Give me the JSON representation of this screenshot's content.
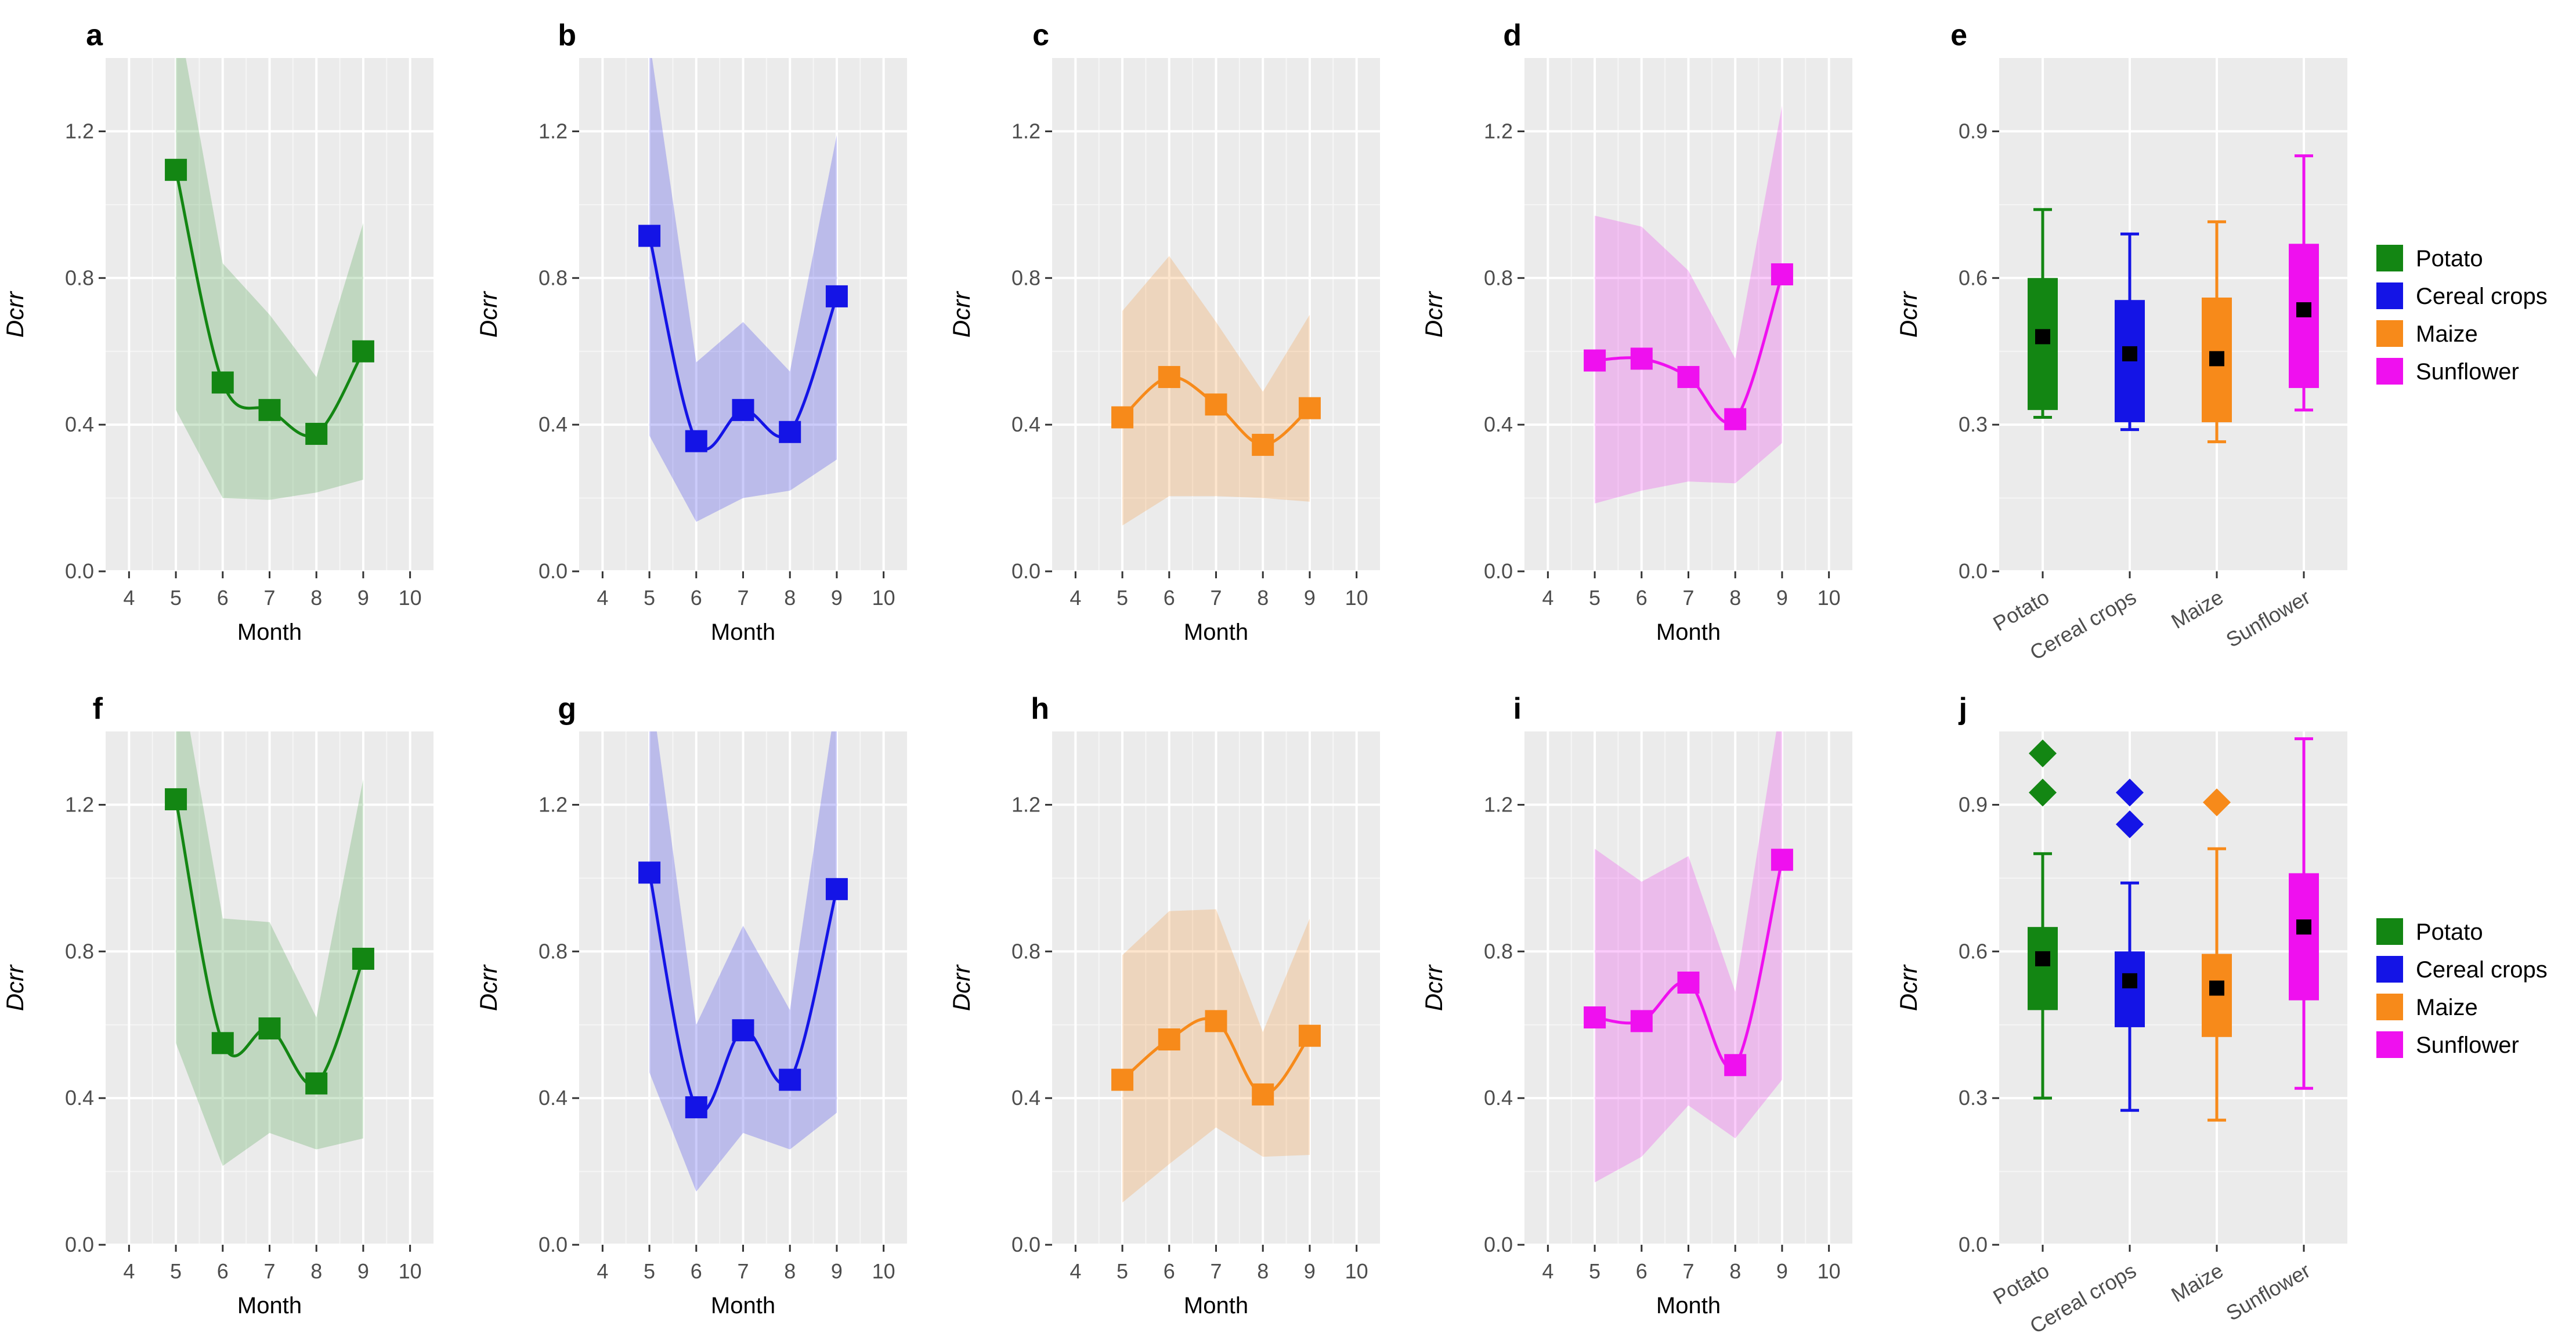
{
  "colors": {
    "potato": "#138613",
    "cereal": "#1414e6",
    "maize": "#f78a1a",
    "sunflower": "#ef10ef",
    "panel_bg": "#ebebeb"
  },
  "chart_data": [
    {
      "id": "a",
      "type": "line",
      "series_key": "potato",
      "title": "a",
      "xlabel": "Month",
      "ylabel": "Dcrr",
      "x": [
        5,
        6,
        7,
        8,
        9
      ],
      "values": [
        1.095,
        0.515,
        0.44,
        0.375,
        0.6
      ],
      "band_low": [
        0.44,
        0.2,
        0.195,
        0.215,
        0.25
      ],
      "band_high": [
        1.55,
        0.84,
        0.7,
        0.53,
        0.95
      ],
      "xlim": [
        3.5,
        10.5
      ],
      "xticks": [
        "4",
        "5",
        "6",
        "7",
        "8",
        "9",
        "10"
      ],
      "ylim": [
        0,
        1.4
      ],
      "yticks": [
        "0.0",
        "0.4",
        "0.8",
        "1.2"
      ]
    },
    {
      "id": "b",
      "type": "line",
      "series_key": "cereal",
      "title": "b",
      "xlabel": "Month",
      "ylabel": "Dcrr",
      "x": [
        5,
        6,
        7,
        8,
        9
      ],
      "values": [
        0.915,
        0.355,
        0.44,
        0.38,
        0.75
      ],
      "band_low": [
        0.37,
        0.135,
        0.2,
        0.22,
        0.305
      ],
      "band_high": [
        1.45,
        0.57,
        0.68,
        0.545,
        1.19
      ],
      "xlim": [
        3.5,
        10.5
      ],
      "xticks": [
        "4",
        "5",
        "6",
        "7",
        "8",
        "9",
        "10"
      ],
      "ylim": [
        0,
        1.4
      ],
      "yticks": [
        "0.0",
        "0.4",
        "0.8",
        "1.2"
      ]
    },
    {
      "id": "c",
      "type": "line",
      "series_key": "maize",
      "title": "c",
      "xlabel": "Month",
      "ylabel": "Dcrr",
      "x": [
        5,
        6,
        7,
        8,
        9
      ],
      "values": [
        0.42,
        0.53,
        0.455,
        0.345,
        0.445
      ],
      "band_low": [
        0.125,
        0.205,
        0.205,
        0.2,
        0.19
      ],
      "band_high": [
        0.71,
        0.86,
        0.68,
        0.49,
        0.7
      ],
      "xlim": [
        3.5,
        10.5
      ],
      "xticks": [
        "4",
        "5",
        "6",
        "7",
        "8",
        "9",
        "10"
      ],
      "ylim": [
        0,
        1.4
      ],
      "yticks": [
        "0.0",
        "0.4",
        "0.8",
        "1.2"
      ]
    },
    {
      "id": "d",
      "type": "line",
      "series_key": "sunflower",
      "title": "d",
      "xlabel": "Month",
      "ylabel": "Dcrr",
      "x": [
        5,
        6,
        7,
        8,
        9
      ],
      "values": [
        0.575,
        0.58,
        0.53,
        0.415,
        0.81
      ],
      "band_low": [
        0.185,
        0.22,
        0.245,
        0.24,
        0.35
      ],
      "band_high": [
        0.97,
        0.94,
        0.82,
        0.58,
        1.27
      ],
      "xlim": [
        3.5,
        10.5
      ],
      "xticks": [
        "4",
        "5",
        "6",
        "7",
        "8",
        "9",
        "10"
      ],
      "ylim": [
        0,
        1.4
      ],
      "yticks": [
        "0.0",
        "0.4",
        "0.8",
        "1.2"
      ]
    },
    {
      "id": "e",
      "type": "box",
      "title": "e",
      "ylabel": "Dcrr",
      "ylim": [
        0,
        1.05
      ],
      "yticks": [
        "0.0",
        "0.3",
        "0.6",
        "0.9"
      ],
      "categories": [
        "Potato",
        "Cereal crops",
        "Maize",
        "Sunflower"
      ],
      "series_keys": [
        "potato",
        "cereal",
        "maize",
        "sunflower"
      ],
      "boxes": [
        {
          "min": 0.315,
          "q1": 0.33,
          "median": 0.48,
          "q3": 0.6,
          "max": 0.74,
          "mean": 0.48,
          "outliers": []
        },
        {
          "min": 0.29,
          "q1": 0.305,
          "median": 0.445,
          "q3": 0.555,
          "max": 0.69,
          "mean": 0.445,
          "outliers": []
        },
        {
          "min": 0.265,
          "q1": 0.305,
          "median": 0.435,
          "q3": 0.56,
          "max": 0.715,
          "mean": 0.435,
          "outliers": []
        },
        {
          "min": 0.33,
          "q1": 0.375,
          "median": 0.535,
          "q3": 0.67,
          "max": 0.85,
          "mean": 0.535,
          "outliers": []
        }
      ],
      "legend": [
        "Potato",
        "Cereal crops",
        "Maize",
        "Sunflower"
      ]
    },
    {
      "id": "f",
      "type": "line",
      "series_key": "potato",
      "title": "f",
      "xlabel": "Month",
      "ylabel": "Dcrr",
      "x": [
        5,
        6,
        7,
        8,
        9
      ],
      "values": [
        1.215,
        0.55,
        0.59,
        0.44,
        0.78
      ],
      "band_low": [
        0.55,
        0.215,
        0.305,
        0.26,
        0.29
      ],
      "band_high": [
        1.62,
        0.89,
        0.88,
        0.62,
        1.27
      ],
      "xlim": [
        3.5,
        10.5
      ],
      "xticks": [
        "4",
        "5",
        "6",
        "7",
        "8",
        "9",
        "10"
      ],
      "ylim": [
        0,
        1.4
      ],
      "yticks": [
        "0.0",
        "0.4",
        "0.8",
        "1.2"
      ]
    },
    {
      "id": "g",
      "type": "line",
      "series_key": "cereal",
      "title": "g",
      "xlabel": "Month",
      "ylabel": "Dcrr",
      "x": [
        5,
        6,
        7,
        8,
        9
      ],
      "values": [
        1.015,
        0.375,
        0.585,
        0.45,
        0.97
      ],
      "band_low": [
        0.47,
        0.145,
        0.305,
        0.26,
        0.36
      ],
      "band_high": [
        1.55,
        0.6,
        0.87,
        0.64,
        1.5
      ],
      "xlim": [
        3.5,
        10.5
      ],
      "xticks": [
        "4",
        "5",
        "6",
        "7",
        "8",
        "9",
        "10"
      ],
      "ylim": [
        0,
        1.4
      ],
      "yticks": [
        "0.0",
        "0.4",
        "0.8",
        "1.2"
      ]
    },
    {
      "id": "h",
      "type": "line",
      "series_key": "maize",
      "title": "h",
      "xlabel": "Month",
      "ylabel": "Dcrr",
      "x": [
        5,
        6,
        7,
        8,
        9
      ],
      "values": [
        0.45,
        0.56,
        0.61,
        0.41,
        0.57
      ],
      "band_low": [
        0.115,
        0.22,
        0.32,
        0.24,
        0.245
      ],
      "band_high": [
        0.79,
        0.91,
        0.915,
        0.58,
        0.89
      ],
      "xlim": [
        3.5,
        10.5
      ],
      "xticks": [
        "4",
        "5",
        "6",
        "7",
        "8",
        "9",
        "10"
      ],
      "ylim": [
        0,
        1.4
      ],
      "yticks": [
        "0.0",
        "0.4",
        "0.8",
        "1.2"
      ]
    },
    {
      "id": "i",
      "type": "line",
      "series_key": "sunflower",
      "title": "i",
      "xlabel": "Month",
      "ylabel": "Dcrr",
      "x": [
        5,
        6,
        7,
        8,
        9
      ],
      "values": [
        0.62,
        0.61,
        0.715,
        0.49,
        1.05
      ],
      "band_low": [
        0.17,
        0.24,
        0.38,
        0.29,
        0.45
      ],
      "band_high": [
        1.08,
        0.99,
        1.06,
        0.69,
        1.5
      ],
      "xlim": [
        3.5,
        10.5
      ],
      "xticks": [
        "4",
        "5",
        "6",
        "7",
        "8",
        "9",
        "10"
      ],
      "ylim": [
        0,
        1.4
      ],
      "yticks": [
        "0.0",
        "0.4",
        "0.8",
        "1.2"
      ]
    },
    {
      "id": "j",
      "type": "box",
      "title": "j",
      "ylabel": "Dcrr",
      "ylim": [
        0,
        1.05
      ],
      "yticks": [
        "0.0",
        "0.3",
        "0.6",
        "0.9"
      ],
      "categories": [
        "Potato",
        "Cereal crops",
        "Maize",
        "Sunflower"
      ],
      "series_keys": [
        "potato",
        "cereal",
        "maize",
        "sunflower"
      ],
      "boxes": [
        {
          "min": 0.3,
          "q1": 0.48,
          "median": 0.585,
          "q3": 0.65,
          "max": 0.8,
          "mean": 0.585,
          "outliers": [
            0.925,
            1.005
          ]
        },
        {
          "min": 0.275,
          "q1": 0.445,
          "median": 0.54,
          "q3": 0.6,
          "max": 0.74,
          "mean": 0.54,
          "outliers": [
            0.86,
            0.925
          ]
        },
        {
          "min": 0.255,
          "q1": 0.425,
          "median": 0.525,
          "q3": 0.595,
          "max": 0.81,
          "mean": 0.525,
          "outliers": [
            0.905
          ]
        },
        {
          "min": 0.32,
          "q1": 0.5,
          "median": 0.65,
          "q3": 0.76,
          "max": 1.035,
          "mean": 0.65,
          "outliers": []
        }
      ],
      "legend": [
        "Potato",
        "Cereal crops",
        "Maize",
        "Sunflower"
      ]
    }
  ]
}
